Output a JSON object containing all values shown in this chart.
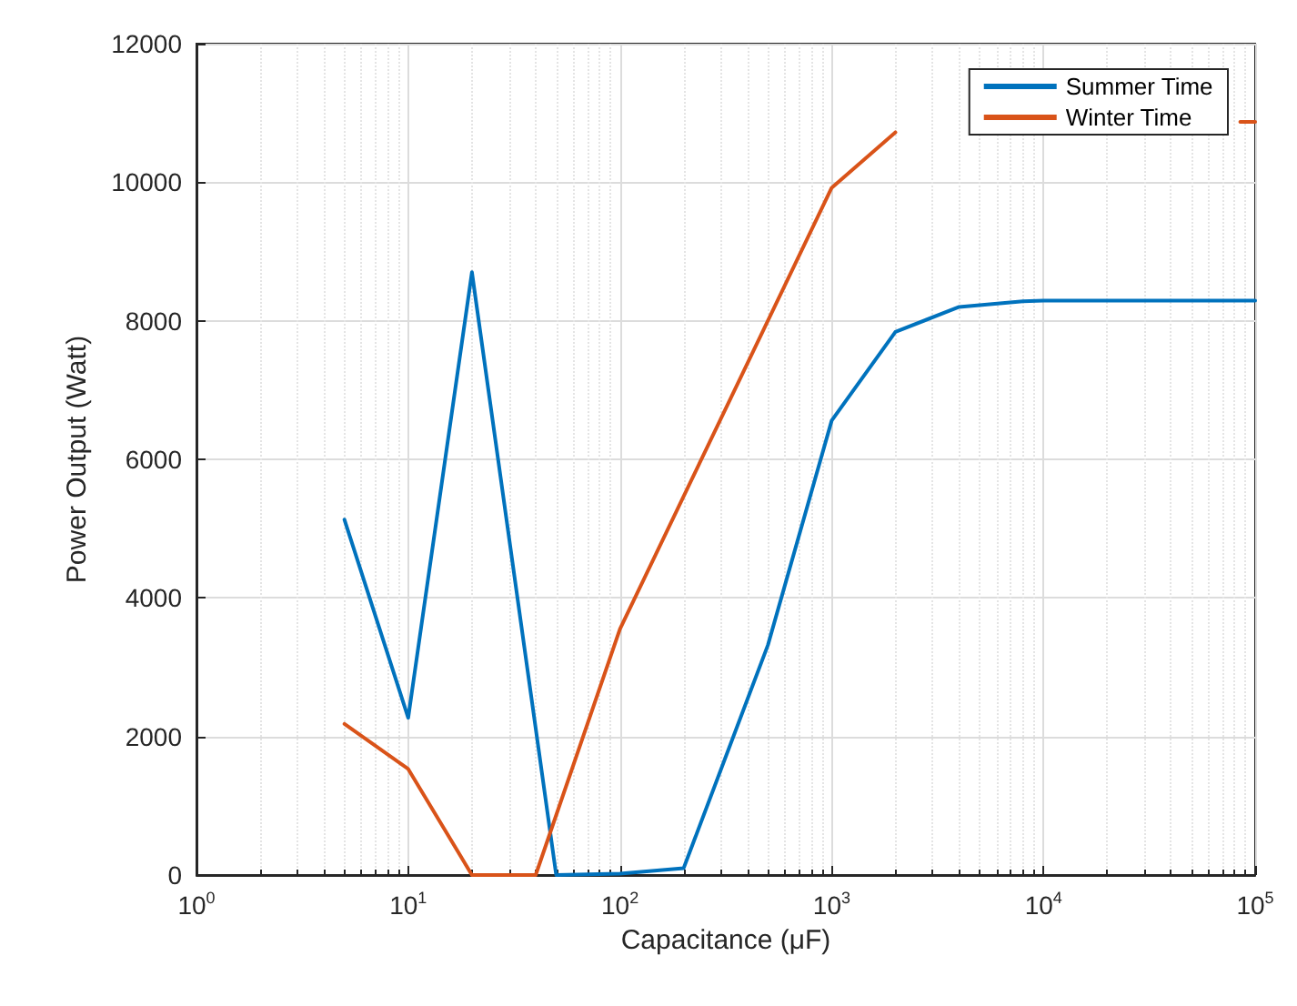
{
  "chart_data": {
    "type": "line",
    "xlabel": "Capacitance (μF)",
    "ylabel": "Power Output (Watt)",
    "log": "x",
    "xlim": [
      1,
      100000
    ],
    "ylim": [
      0,
      12000
    ],
    "xticks": [
      {
        "value": 1,
        "label": "10$^{0}$"
      },
      {
        "value": 10,
        "label": "10$^{1}$"
      },
      {
        "value": 100,
        "label": "10$^{2}$"
      },
      {
        "value": 1000,
        "label": "10$^{3}$"
      },
      {
        "value": 10000,
        "label": "10$^{4}$"
      },
      {
        "value": 100000,
        "label": "10$^{5}$"
      }
    ],
    "yticks": [
      0,
      2000,
      4000,
      6000,
      8000,
      10000,
      12000
    ],
    "grid": true,
    "legend": "top right",
    "line_style": "solid",
    "marker": "none",
    "series": [
      {
        "name": "Summer Time",
        "color": "#0072bd",
        "x": [
          5,
          10,
          20,
          50,
          100,
          200,
          500,
          1000,
          2000,
          4000,
          8000,
          10000,
          20000,
          50000,
          100000
        ],
        "values": [
          5130,
          2270,
          8700,
          0,
          20,
          100,
          3320,
          6560,
          7840,
          8200,
          8280,
          8290,
          8290,
          8290,
          8290
        ]
      },
      {
        "name": "Winter Time",
        "color": "#d95319",
        "x": [
          5,
          10,
          20,
          40,
          100,
          1000,
          2000,
          10000,
          85000,
          100000
        ],
        "values": [
          2180,
          1530,
          0,
          0,
          3550,
          9920,
          10720,
          null,
          10870,
          10870
        ]
      }
    ]
  }
}
